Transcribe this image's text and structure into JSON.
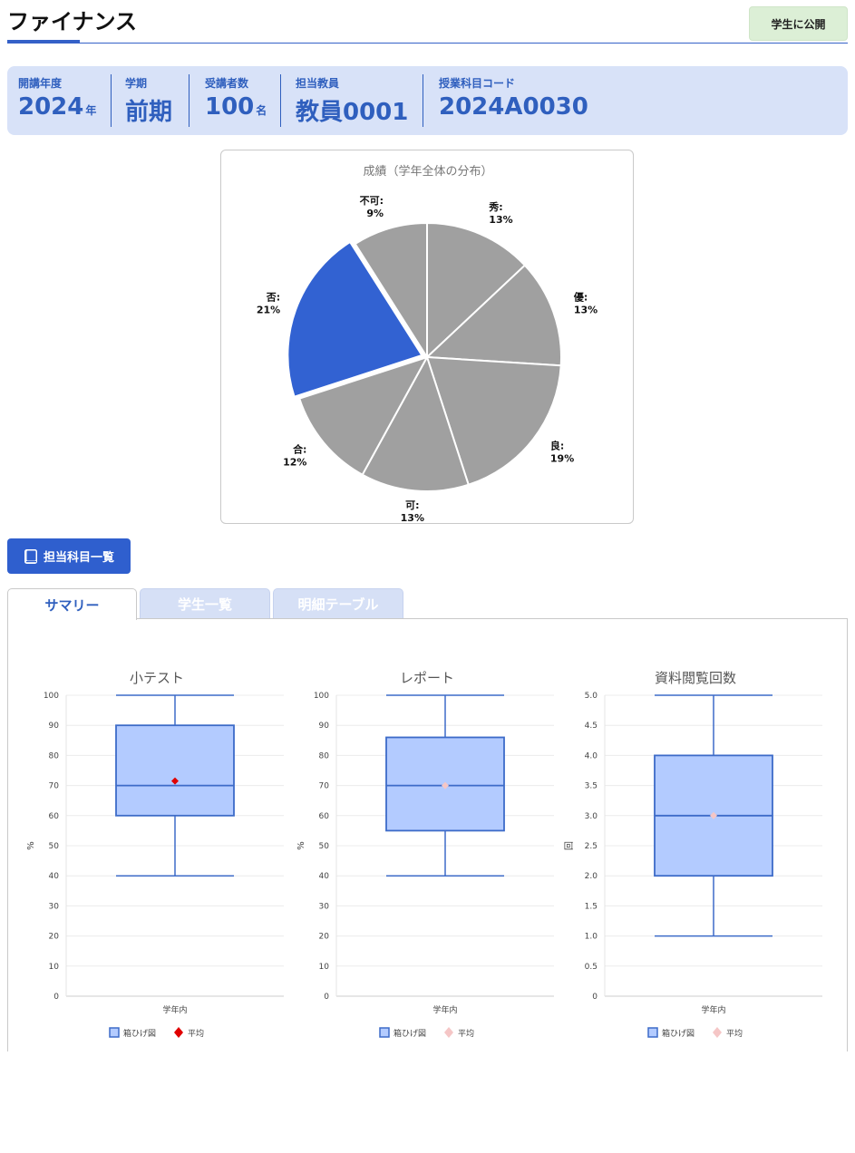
{
  "header": {
    "title": "ファイナンス",
    "publish_label": "学生に公開"
  },
  "info": {
    "year_label": "開講年度",
    "year_value": "2024",
    "year_unit": "年",
    "term_label": "学期",
    "term_value": "前期",
    "students_label": "受講者数",
    "students_value": "100",
    "students_unit": "名",
    "teacher_label": "担当教員",
    "teacher_value": "教員0001",
    "code_label": "授業科目コード",
    "code_value": "2024A0030"
  },
  "buttons": {
    "course_list": "担当科目一覧"
  },
  "tabs": [
    {
      "label": "サマリー",
      "active": true
    },
    {
      "label": "学生一覧",
      "active": false
    },
    {
      "label": "明細テーブル",
      "active": false
    }
  ],
  "colors": {
    "accent": "#3561c8",
    "highlight_slice": "#3262d2",
    "slice": "#a0a0a0",
    "box_fill": "#b3cbff",
    "box_stroke": "#3d6bc8",
    "mean_marker": "#e00000",
    "mean_marker_faded": "#f5c6c6"
  },
  "chart_data": [
    {
      "type": "pie",
      "title": "成績（学年全体の分布）",
      "slices": [
        {
          "label": "秀",
          "percent": 13,
          "highlight": false
        },
        {
          "label": "優",
          "percent": 13,
          "highlight": false
        },
        {
          "label": "良",
          "percent": 19,
          "highlight": false
        },
        {
          "label": "可",
          "percent": 13,
          "highlight": false
        },
        {
          "label": "合",
          "percent": 12,
          "highlight": false
        },
        {
          "label": "否",
          "percent": 21,
          "highlight": true
        },
        {
          "label": "不可",
          "percent": 9,
          "highlight": false
        }
      ]
    },
    {
      "type": "box",
      "title": "小テスト",
      "ylabel": "%",
      "ylim": [
        0,
        100
      ],
      "yticks": [
        "0",
        "10",
        "20",
        "30",
        "40",
        "50",
        "60",
        "70",
        "80",
        "90",
        "100"
      ],
      "category": "学年内",
      "min": 40,
      "q1": 60,
      "median": 70,
      "q3": 90,
      "max": 100,
      "mean": 71.5,
      "mean_faded": false,
      "legend": [
        "箱ひげ図",
        "平均"
      ]
    },
    {
      "type": "box",
      "title": "レポート",
      "ylabel": "%",
      "ylim": [
        0,
        100
      ],
      "yticks": [
        "0",
        "10",
        "20",
        "30",
        "40",
        "50",
        "60",
        "70",
        "80",
        "90",
        "100"
      ],
      "category": "学年内",
      "min": 40,
      "q1": 55,
      "median": 70,
      "q3": 86,
      "max": 100,
      "mean": 70,
      "mean_faded": true,
      "legend": [
        "箱ひげ図",
        "平均"
      ]
    },
    {
      "type": "box",
      "title": "資料閲覧回数",
      "ylabel": "回",
      "ylim": [
        0,
        5
      ],
      "yticks": [
        "0",
        "0.5",
        "1.0",
        "1.5",
        "2.0",
        "2.5",
        "3.0",
        "3.5",
        "4.0",
        "4.5",
        "5.0"
      ],
      "category": "学年内",
      "min": 1,
      "q1": 2,
      "median": 3,
      "q3": 4,
      "max": 5,
      "mean": 3,
      "mean_faded": true,
      "legend": [
        "箱ひげ図",
        "平均"
      ]
    }
  ]
}
